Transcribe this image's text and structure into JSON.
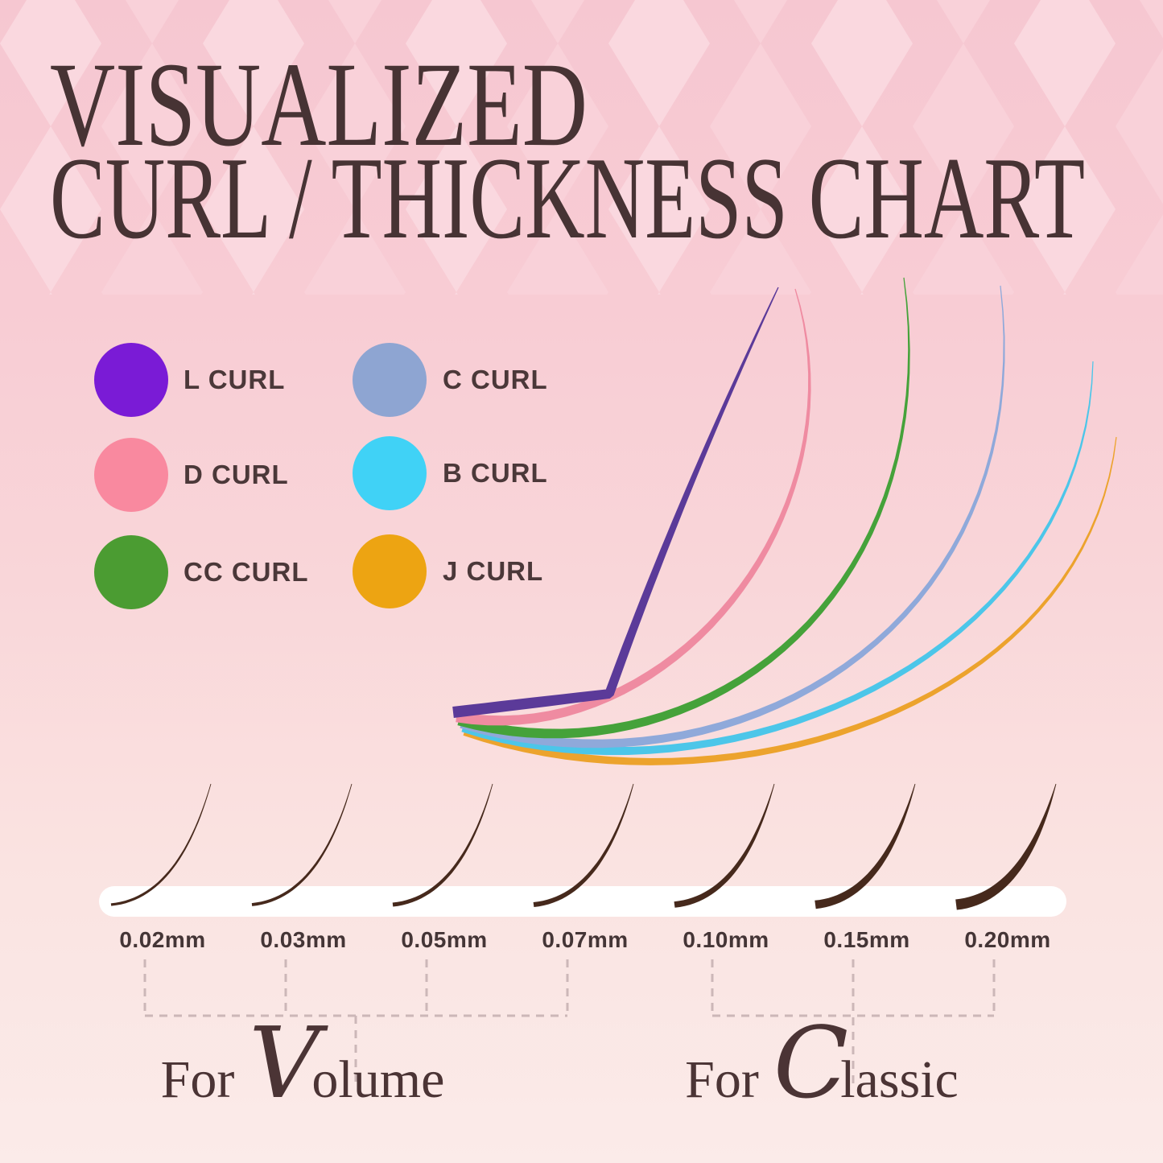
{
  "title": {
    "line1": "VISUALIZED",
    "line2": "CURL / THICKNESS CHART"
  },
  "legend": {
    "items": [
      {
        "label": "L CURL",
        "color": "#7a1bd6"
      },
      {
        "label": "C CURL",
        "color": "#8ea5d2"
      },
      {
        "label": "D CURL",
        "color": "#f9899f"
      },
      {
        "label": "B CURL",
        "color": "#40d2f6"
      },
      {
        "label": "CC CURL",
        "color": "#4b9c32"
      },
      {
        "label": "J CURL",
        "color": "#eda412"
      }
    ]
  },
  "thickness_labels": [
    "0.02mm",
    "0.03mm",
    "0.05mm",
    "0.07mm",
    "0.10mm",
    "0.15mm",
    "0.20mm"
  ],
  "groups": [
    {
      "prefix": "For",
      "initial": "V",
      "rest": "olume",
      "full": "For Volume"
    },
    {
      "prefix": "For",
      "initial": "C",
      "rest": "lassic",
      "full": "For Classic"
    }
  ],
  "colors": {
    "background_top": "#f6c7d1",
    "background_bottom": "#fbebe9",
    "diamond_light": "#fad8df",
    "diamond_mid": "#f9d1d9",
    "title_text": "#473334",
    "label_text": "#4b3839",
    "lash_brown": "#46291c",
    "strip_white": "#ffffff",
    "dashed_line": "#ccb7b8"
  },
  "chart_data": {
    "type": "line",
    "title": "VISUALIZED CURL / THICKNESS CHART",
    "description": "Eyelash extension infographic: six curl types fanned from a common base (most to least curled) and seven lash thickness samples on a white strip",
    "curl_series": [
      {
        "name": "L CURL",
        "dot_color": "#7a1bd6",
        "curve_color": "#5b3a99",
        "curl_rank": 1
      },
      {
        "name": "D CURL",
        "dot_color": "#f9899f",
        "curve_color": "#ef8ba1",
        "curl_rank": 2
      },
      {
        "name": "CC CURL",
        "dot_color": "#4b9c32",
        "curve_color": "#45a23a",
        "curl_rank": 3
      },
      {
        "name": "C CURL",
        "dot_color": "#8ea5d2",
        "curve_color": "#8fa9da",
        "curl_rank": 4
      },
      {
        "name": "B CURL",
        "dot_color": "#40d2f6",
        "curve_color": "#4cc6e9",
        "curl_rank": 5
      },
      {
        "name": "J CURL",
        "dot_color": "#eda412",
        "curve_color": "#eca32d",
        "curl_rank": 6
      }
    ],
    "thickness_mm": [
      0.02,
      0.03,
      0.05,
      0.07,
      0.1,
      0.15,
      0.2
    ],
    "thickness_groups": [
      {
        "label": "For Volume",
        "values": [
          0.02,
          0.03,
          0.05,
          0.07
        ]
      },
      {
        "label": "For Classic",
        "values": [
          0.1,
          0.15,
          0.2
        ]
      }
    ],
    "legend_position": "left-middle",
    "grid": false
  }
}
